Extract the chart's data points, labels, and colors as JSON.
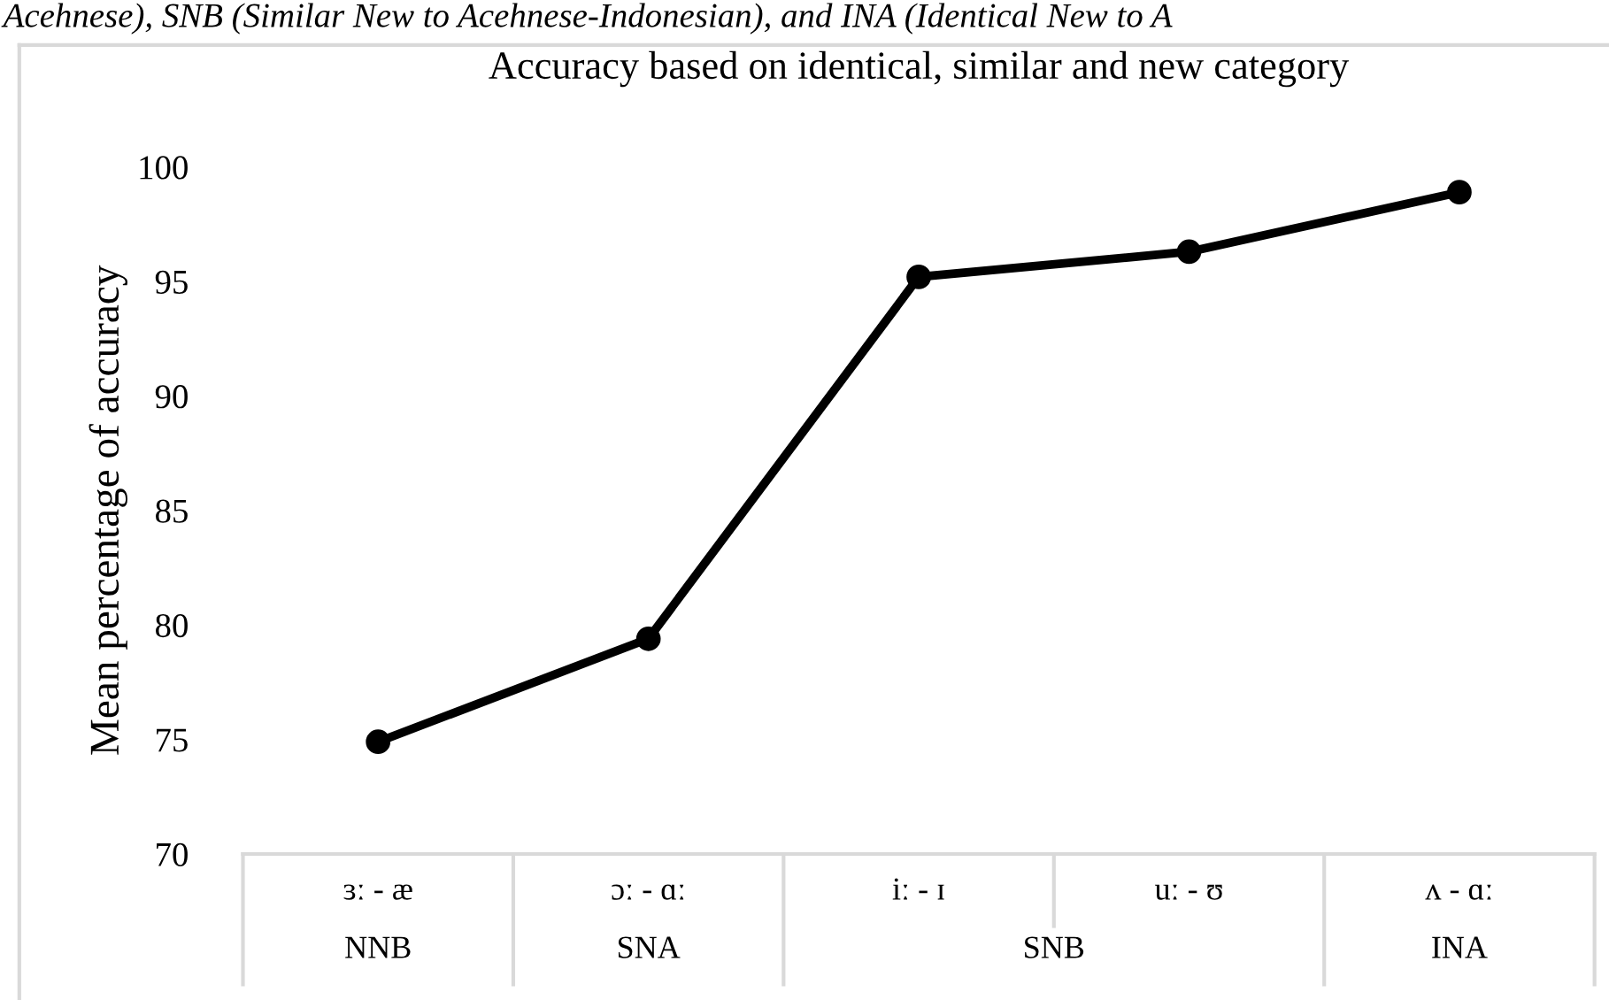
{
  "chart_data": {
    "type": "line",
    "title": "Accuracy based on identical, similar and new category",
    "ylabel": "Mean percentage of accuracy",
    "categories": [
      "ɜː - æ",
      "ɔː - ɑː",
      "iː - ɪ",
      "uː - ʊ",
      "ʌ - ɑː"
    ],
    "series": [
      {
        "color": "#000000",
        "values": [
          74.9,
          79.4,
          95.2,
          96.3,
          98.9
        ]
      }
    ],
    "ylim": [
      70,
      100
    ],
    "yticks": [
      70,
      75,
      80,
      85,
      90,
      95,
      100
    ],
    "grid": false,
    "marker": "circle",
    "line_style": "solid",
    "annotations": [
      "Acehnese), SNB (Similar New to Acehnese-Indonesian), and INA (Identical New to A",
      "NNB",
      "SNA",
      "SNB",
      "INA"
    ]
  }
}
